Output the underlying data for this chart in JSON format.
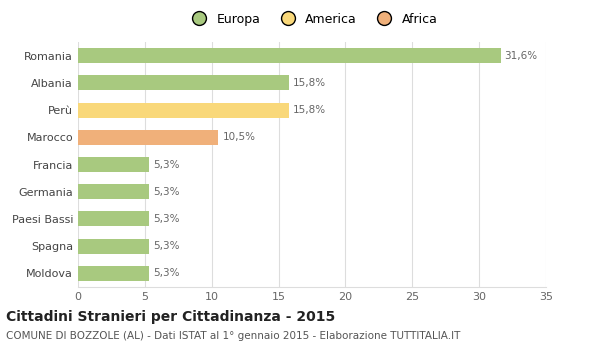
{
  "categories": [
    "Romania",
    "Albania",
    "Perù",
    "Marocco",
    "Francia",
    "Germania",
    "Paesi Bassi",
    "Spagna",
    "Moldova"
  ],
  "values": [
    31.6,
    15.8,
    15.8,
    10.5,
    5.3,
    5.3,
    5.3,
    5.3,
    5.3
  ],
  "labels": [
    "31,6%",
    "15,8%",
    "15,8%",
    "10,5%",
    "5,3%",
    "5,3%",
    "5,3%",
    "5,3%",
    "5,3%"
  ],
  "colors": [
    "#a8c97f",
    "#a8c97f",
    "#f9d87a",
    "#f0b07a",
    "#a8c97f",
    "#a8c97f",
    "#a8c97f",
    "#a8c97f",
    "#a8c97f"
  ],
  "legend": [
    {
      "label": "Europa",
      "color": "#a8c97f"
    },
    {
      "label": "America",
      "color": "#f9d87a"
    },
    {
      "label": "Africa",
      "color": "#f0b07a"
    }
  ],
  "xlim": [
    0,
    35
  ],
  "xticks": [
    0,
    5,
    10,
    15,
    20,
    25,
    30,
    35
  ],
  "title": "Cittadini Stranieri per Cittadinanza - 2015",
  "subtitle": "COMUNE DI BOZZOLE (AL) - Dati ISTAT al 1° gennaio 2015 - Elaborazione TUTTITALIA.IT",
  "background_color": "#ffffff",
  "grid_color": "#dddddd",
  "bar_height": 0.55,
  "label_fontsize": 7.5,
  "title_fontsize": 10,
  "subtitle_fontsize": 7.5,
  "ytick_fontsize": 8,
  "xtick_fontsize": 8,
  "legend_fontsize": 9
}
